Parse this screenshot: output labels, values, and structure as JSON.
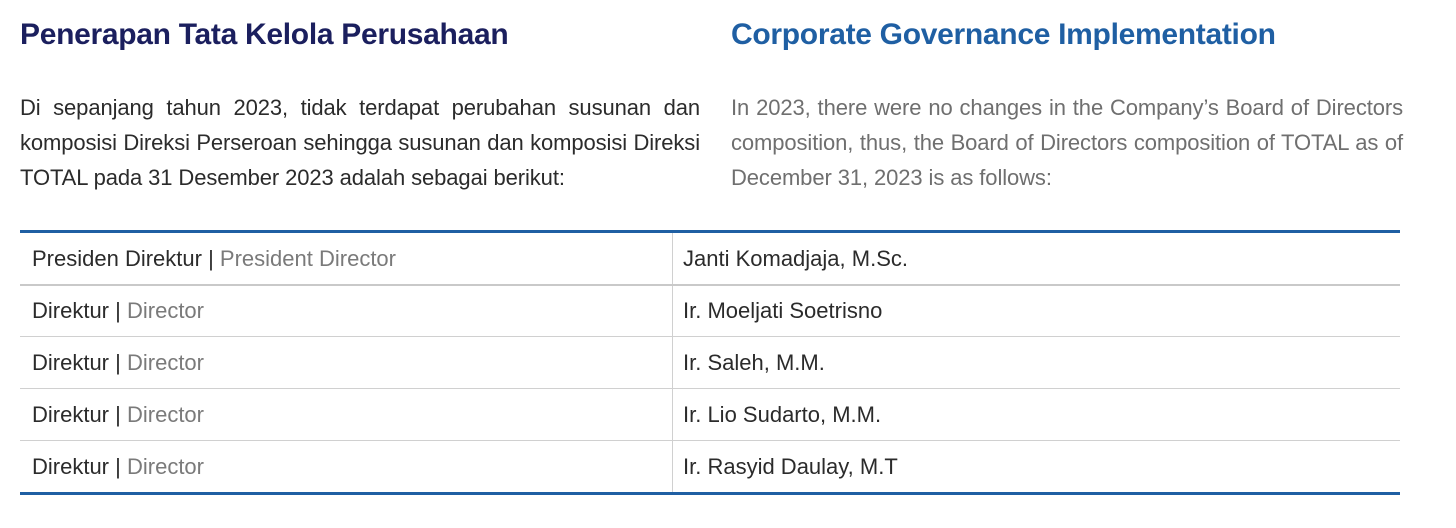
{
  "left": {
    "heading": "Penerapan Tata Kelola Perusahaan",
    "paragraph": "Di sepanjang tahun 2023, tidak terdapat perubahan susunan dan komposisi Direksi Perseroan sehingga susunan dan komposisi Direksi TOTAL pada 31 Desember 2023 adalah sebagai berikut:"
  },
  "right": {
    "heading": "Corporate Governance Implementation",
    "paragraph": "In 2023, there were no changes in the Company’s Board of Directors composition, thus, the Board of Directors composition of TOTAL as of December 31, 2023 is as follows:"
  },
  "colors": {
    "heading_id": "#1b1f5e",
    "heading_en": "#1f5fa3",
    "table_rule": "#1f5fa3"
  },
  "table": {
    "separator": "|",
    "rows": [
      {
        "position_id": "Presiden Direktur",
        "position_en": "President Director",
        "name": "Janti Komadjaja, M.Sc."
      },
      {
        "position_id": "Direktur",
        "position_en": "Director",
        "name": "Ir. Moeljati Soetrisno"
      },
      {
        "position_id": "Direktur",
        "position_en": "Director",
        "name": "Ir. Saleh, M.M."
      },
      {
        "position_id": "Direktur",
        "position_en": "Director",
        "name": "Ir. Lio Sudarto, M.M."
      },
      {
        "position_id": "Direktur",
        "position_en": "Director",
        "name": "Ir. Rasyid Daulay, M.T"
      }
    ]
  }
}
